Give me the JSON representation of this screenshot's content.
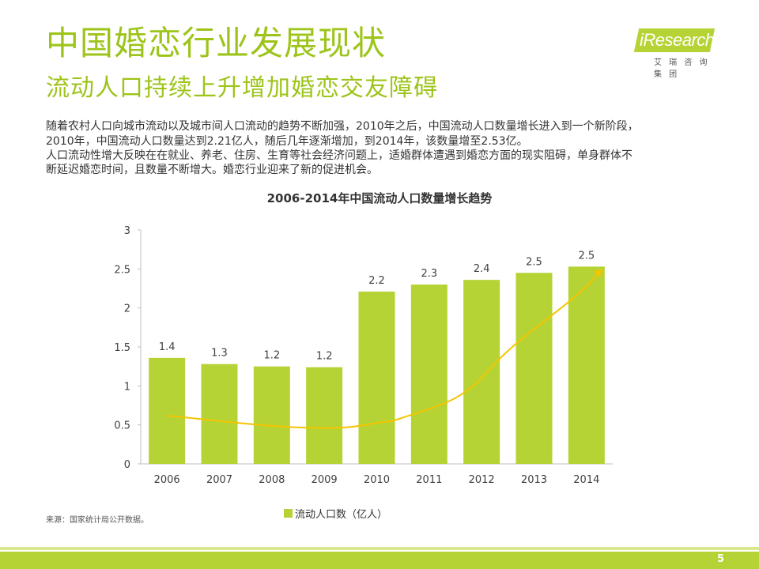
{
  "header": {
    "title": "中国婚恋行业发展现状",
    "subtitle": "流动人口持续上升增加婚恋交友障碍"
  },
  "logo": {
    "name": "iResearch",
    "sub": "艾 瑞 咨 询 集 团"
  },
  "body": {
    "line1": "随着农村人口向城市流动以及城市间人口流动的趋势不断加强，2010年之后，中国流动人口数量增长进入到一个新阶段，",
    "line2": "2010年，中国流动人口数量达到2.21亿人，随后几年逐渐增加，到2014年，该数量增至2.53亿。",
    "line3": "人口流动性增大反映在在就业、养老、住房、生育等社会经济问题上，适婚群体遭遇到婚恋方面的现实阻碍，单身群体不",
    "line4": "断延迟婚恋时间，且数量不断增大。婚恋行业迎来了新的促进机会。"
  },
  "chart_data": {
    "type": "bar",
    "title": "2006-2014年中国流动人口数量增长趋势",
    "categories": [
      "2006",
      "2007",
      "2008",
      "2009",
      "2010",
      "2011",
      "2012",
      "2013",
      "2014"
    ],
    "series": [
      {
        "name": "流动人口数（亿人）",
        "values": [
          1.36,
          1.28,
          1.25,
          1.24,
          2.21,
          2.3,
          2.36,
          2.45,
          2.53
        ],
        "labels": [
          "1.4",
          "1.3",
          "1.2",
          "1.2",
          "2.2",
          "2.3",
          "2.4",
          "2.5",
          "2.5"
        ]
      }
    ],
    "yticks": [
      "0",
      "0.5",
      "1",
      "1.5",
      "2",
      "2.5",
      "3"
    ],
    "ylim": [
      0,
      3
    ],
    "trend_line": true,
    "colors": {
      "bar": "#b5d334",
      "trend": "#f5c400",
      "axis": "#bfbfbf"
    }
  },
  "footer": {
    "source": "来源：国家统计局公开数据。",
    "page": "5"
  }
}
